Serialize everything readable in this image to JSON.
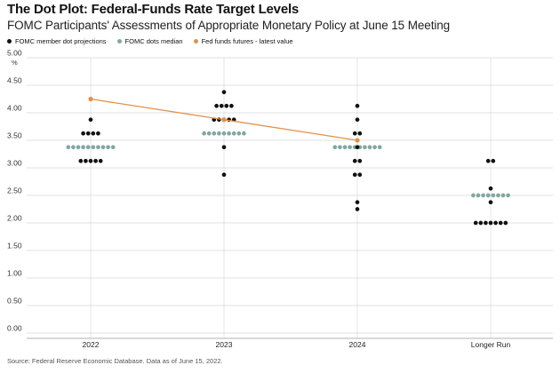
{
  "title": "The Dot Plot: Federal-Funds Rate Target Levels",
  "subtitle": "FOMC Participants' Assessments of Appropriate Monetary Policy at June 15 Meeting",
  "source": "Source: Federal Reserve Economic Database. Data as of June 15, 2022.",
  "colors": {
    "dot": "#111111",
    "median": "#7fa8a0",
    "futures": "#e0914a",
    "grid": "#d9d9d9",
    "axis": "#999999"
  },
  "chart_data": {
    "type": "scatter",
    "title": "The Dot Plot: Federal-Funds Rate Target Levels",
    "subtitle": "FOMC Participants' Assessments of Appropriate Monetary Policy at June 15 Meeting",
    "ylabel": "%",
    "ylim": [
      0,
      5
    ],
    "yticks": [
      "5.00",
      "4.50",
      "4.00",
      "3.50",
      "3.00",
      "2.50",
      "2.00",
      "1.50",
      "1.00",
      "0.50",
      "0.00"
    ],
    "yunit": "%",
    "categories": [
      "2022",
      "2023",
      "2024",
      "Longer Run"
    ],
    "legend": [
      {
        "key": "dots",
        "label": "FOMC member dot projections"
      },
      {
        "key": "median",
        "label": "FOMC dots median"
      },
      {
        "key": "futures",
        "label": "Fed funds futures - latest value"
      }
    ],
    "dots": [
      [
        {
          "y": 3.875,
          "n": 1
        },
        {
          "y": 3.625,
          "n": 4
        },
        {
          "y": 3.125,
          "n": 5
        }
      ],
      [
        {
          "y": 4.375,
          "n": 1
        },
        {
          "y": 4.125,
          "n": 4
        },
        {
          "y": 3.875,
          "n": 5
        },
        {
          "y": 3.375,
          "n": 1
        },
        {
          "y": 2.875,
          "n": 1
        }
      ],
      [
        {
          "y": 4.125,
          "n": 1
        },
        {
          "y": 3.875,
          "n": 1
        },
        {
          "y": 3.625,
          "n": 2
        },
        {
          "y": 3.375,
          "n": 1
        },
        {
          "y": 3.125,
          "n": 2
        },
        {
          "y": 2.875,
          "n": 2
        },
        {
          "y": 2.375,
          "n": 1
        },
        {
          "y": 2.25,
          "n": 1
        }
      ],
      [
        {
          "y": 3.125,
          "n": 2
        },
        {
          "y": 2.625,
          "n": 1
        },
        {
          "y": 2.375,
          "n": 1
        },
        {
          "y": 2.0,
          "n": 7
        }
      ]
    ],
    "median": [
      {
        "y": 3.375,
        "n": 10
      },
      {
        "y": 3.625,
        "n": 9
      },
      {
        "y": 3.375,
        "n": 10
      },
      {
        "y": 2.5,
        "n": 8
      }
    ],
    "futures": [
      4.25,
      3.875,
      3.5
    ]
  }
}
